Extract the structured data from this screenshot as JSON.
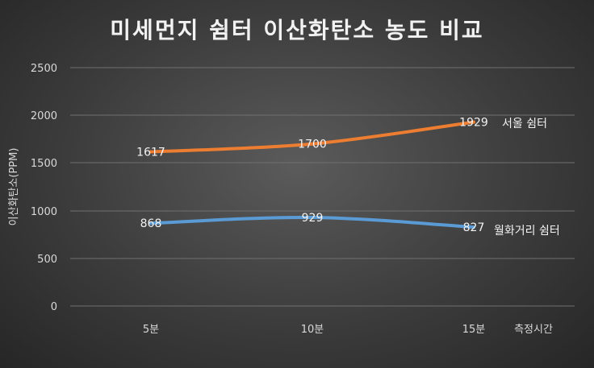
{
  "chart_data": {
    "type": "line",
    "title": "미세먼지 쉼터 이산화탄소 농도 비교",
    "xlabel": "측정시간",
    "ylabel": "이산화탄소(PPM)",
    "categories": [
      "5분",
      "10분",
      "15분"
    ],
    "ylim": [
      0,
      2500
    ],
    "yticks": [
      "0",
      "500",
      "1000",
      "1500",
      "2000",
      "2500"
    ],
    "grid": true,
    "series": [
      {
        "name": "서울 쉼터",
        "values": [
          1617,
          1700,
          1929
        ],
        "value_labels": [
          "1617",
          "1700",
          "1929"
        ],
        "color": "#ed7d31"
      },
      {
        "name": "월화거리 쉼터",
        "values": [
          868,
          929,
          827
        ],
        "value_labels": [
          "868",
          "929",
          "827"
        ],
        "color": "#5b9bd5"
      }
    ]
  }
}
